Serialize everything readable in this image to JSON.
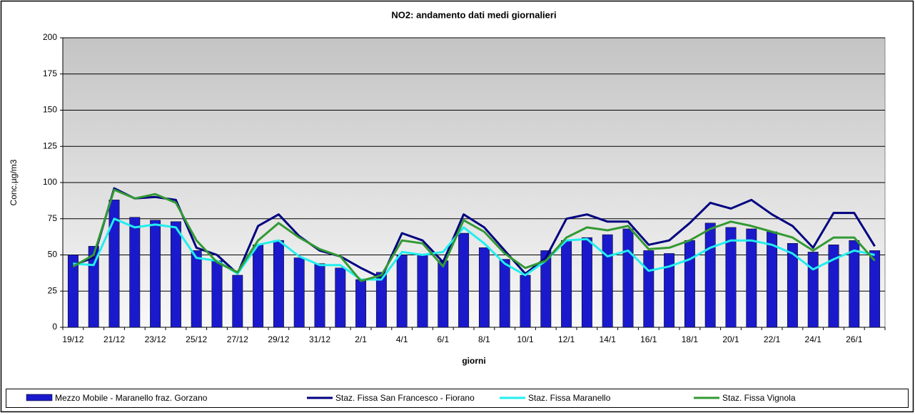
{
  "chart_data": {
    "type": "bar_line",
    "title": "NO2: andamento dati medi giornalieri",
    "x_label": "giorni",
    "y_label": "Conc.µg/m3",
    "categories": [
      "19/12",
      null,
      "21/12",
      null,
      "23/12",
      null,
      "25/12",
      null,
      "27/12",
      null,
      "29/12",
      null,
      "31/12",
      null,
      "2/1",
      null,
      "4/1",
      null,
      "6/1",
      null,
      "8/1",
      null,
      "10/1",
      null,
      "12/1",
      null,
      "14/1",
      null,
      "16/1",
      null,
      "18/1",
      null,
      "20/1",
      null,
      "22/1",
      null,
      "24/1",
      null,
      "26/1",
      null
    ],
    "ylim": [
      0,
      200
    ],
    "yticks": [
      0,
      25,
      50,
      75,
      100,
      125,
      150,
      175,
      200
    ],
    "grid": true,
    "series": [
      {
        "name": "Mezzo Mobile - Maranello fraz. Gorzano",
        "type": "bar",
        "color": "#1a1acc",
        "values": [
          50,
          56,
          88,
          76,
          74,
          73,
          53,
          46,
          36,
          57,
          60,
          48,
          44,
          41,
          33,
          38,
          50,
          50,
          46,
          65,
          55,
          47,
          36,
          53,
          60,
          62,
          64,
          68,
          53,
          51,
          60,
          72,
          69,
          68,
          66,
          58,
          52,
          57,
          60,
          53
        ]
      },
      {
        "name": "Staz. Fissa San Francesco - Fiorano",
        "type": "line",
        "color": "#000080",
        "values": [
          43,
          48,
          96,
          89,
          90,
          88,
          55,
          50,
          37,
          70,
          78,
          63,
          53,
          49,
          41,
          34,
          65,
          60,
          45,
          78,
          69,
          53,
          37,
          48,
          75,
          78,
          73,
          73,
          57,
          60,
          72,
          86,
          82,
          88,
          78,
          70,
          55,
          79,
          79,
          56
        ]
      },
      {
        "name": "Staz. Fissa Maranello",
        "type": "line",
        "color": "#22eeee",
        "values": [
          44,
          43,
          75,
          69,
          71,
          69,
          48,
          46,
          37,
          57,
          60,
          49,
          43,
          43,
          33,
          33,
          52,
          50,
          52,
          69,
          58,
          44,
          36,
          46,
          60,
          61,
          49,
          53,
          39,
          42,
          47,
          55,
          60,
          60,
          57,
          51,
          40,
          47,
          53,
          50
        ]
      },
      {
        "name": "Staz. Fissa Vignola",
        "type": "line",
        "color": "#339933",
        "values": [
          42,
          50,
          95,
          89,
          92,
          86,
          60,
          45,
          38,
          60,
          72,
          62,
          54,
          49,
          32,
          36,
          60,
          58,
          42,
          74,
          66,
          51,
          41,
          46,
          62,
          69,
          67,
          70,
          54,
          55,
          60,
          68,
          73,
          70,
          66,
          62,
          53,
          62,
          62,
          46
        ]
      }
    ]
  }
}
